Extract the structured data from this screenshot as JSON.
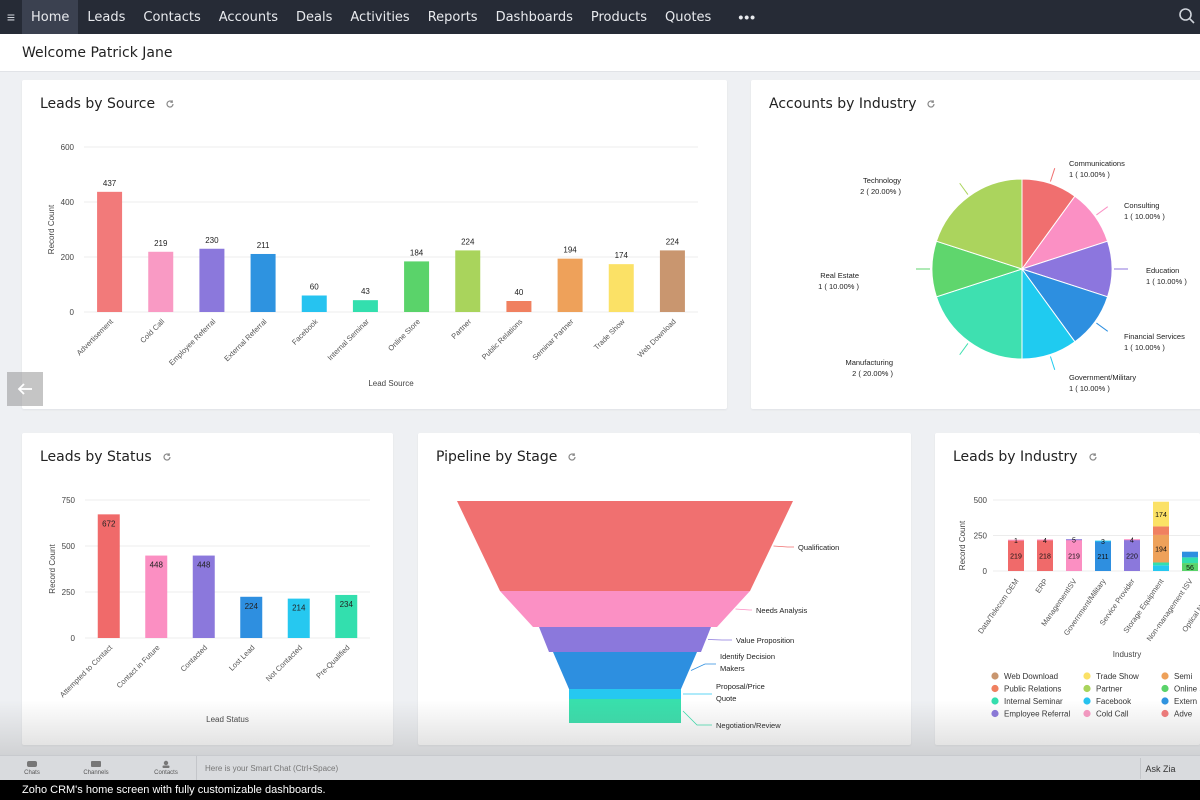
{
  "nav": {
    "items": [
      "Home",
      "Leads",
      "Contacts",
      "Accounts",
      "Deals",
      "Activities",
      "Reports",
      "Dashboards",
      "Products",
      "Quotes"
    ],
    "active": "Home",
    "more": "•••"
  },
  "welcome": "Welcome Patrick Jane",
  "cards": {
    "leads_by_source": {
      "title": "Leads by Source"
    },
    "accounts_by_industry": {
      "title": "Accounts by Industry"
    },
    "leads_by_status": {
      "title": "Leads by Status"
    },
    "pipeline_by_stage": {
      "title": "Pipeline by Stage"
    },
    "leads_by_industry": {
      "title": "Leads by Industry"
    }
  },
  "chart_data": [
    {
      "id": "leads_by_source",
      "type": "bar",
      "title": "Leads by Source",
      "xlabel": "Lead Source",
      "ylabel": "Record Count",
      "ylim": [
        0,
        600
      ],
      "yticks": [
        0,
        200,
        400,
        600
      ],
      "categories": [
        "Advertisement",
        "Cold Call",
        "Employee Referral",
        "External Referral",
        "Facebook",
        "Internal Seminar",
        "Online Store",
        "Partner",
        "Public Relations",
        "Seminar Partner",
        "Trade Show",
        "Web Download"
      ],
      "values": [
        437,
        219,
        230,
        211,
        60,
        43,
        184,
        224,
        40,
        194,
        174,
        224
      ],
      "colors": [
        "#f27a7a",
        "#f99ac4",
        "#8b78dc",
        "#2e93e0",
        "#26c3f0",
        "#33dfae",
        "#5ad36a",
        "#a9d45c",
        "#f08060",
        "#eea15a",
        "#fbe166",
        "#c9966f"
      ]
    },
    {
      "id": "accounts_by_industry",
      "type": "pie",
      "title": "Accounts by Industry",
      "slices": [
        {
          "label": "Communications",
          "value": 1,
          "text": "1 ( 10.00% )",
          "color": "#f06f6f"
        },
        {
          "label": "Consulting",
          "value": 1,
          "text": "1 ( 10.00% )",
          "color": "#fb90c4"
        },
        {
          "label": "Education",
          "value": 1,
          "text": "1 ( 10.00% )",
          "color": "#8c76de"
        },
        {
          "label": "Financial Services",
          "value": 1,
          "text": "1 ( 10.00% )",
          "color": "#2d8fe0"
        },
        {
          "label": "Government/Military",
          "value": 1,
          "text": "1 ( 10.00% )",
          "color": "#1fcbf0"
        },
        {
          "label": "Manufacturing",
          "value": 2,
          "text": "2 ( 20.00% )",
          "color": "#3ee0b0"
        },
        {
          "label": "Real Estate",
          "value": 1,
          "text": "1 ( 10.00% )",
          "color": "#5fd66d"
        },
        {
          "label": "Technology",
          "value": 2,
          "text": "2 ( 20.00% )",
          "color": "#abd45d"
        }
      ]
    },
    {
      "id": "leads_by_status",
      "type": "bar",
      "title": "Leads by Status",
      "xlabel": "Lead Status",
      "ylabel": "Record Count",
      "ylim": [
        0,
        750
      ],
      "yticks": [
        0,
        250,
        500,
        750
      ],
      "categories": [
        "Attempted to Contact",
        "Contact in Future",
        "Contacted",
        "Lost Lead",
        "Not Contacted",
        "Pre-Qualified"
      ],
      "values": [
        672,
        448,
        448,
        224,
        214,
        234
      ],
      "colors": [
        "#f06a6a",
        "#fb8fc2",
        "#8b78dc",
        "#2e8fe0",
        "#26c8f0",
        "#33dfae"
      ]
    },
    {
      "id": "pipeline_by_stage",
      "type": "funnel",
      "title": "Pipeline by Stage",
      "stages": [
        {
          "label": "Qualification",
          "color": "#f07070"
        },
        {
          "label": "Needs Analysis",
          "color": "#fb90c4"
        },
        {
          "label": "Value Proposition",
          "color": "#8b78dc"
        },
        {
          "label": "Identify Decision Makers",
          "color": "#2d8fe0"
        },
        {
          "label": "Proposal/Price Quote",
          "color": "#26c8f0"
        },
        {
          "label": "Negotiation/Review",
          "color": "#38e0ac"
        }
      ]
    },
    {
      "id": "leads_by_industry",
      "type": "bar",
      "stacked": true,
      "title": "Leads by Industry",
      "xlabel": "Industry",
      "ylabel": "Record Count",
      "ylim": [
        0,
        500
      ],
      "yticks": [
        0,
        250,
        500
      ],
      "categories": [
        "Data/Telecom OEM",
        "ERP",
        "ManagementISV",
        "Government/Military",
        "Service Provider",
        "Storage Equipment",
        "Non-management ISV",
        "Optical Networking"
      ],
      "bars": [
        {
          "segments": [
            {
              "value": 219,
              "color": "#f06a6a",
              "label": "219"
            },
            {
              "value": 1,
              "color": "#fb8fc2",
              "label": "1"
            }
          ]
        },
        {
          "segments": [
            {
              "value": 218,
              "color": "#f06a6a",
              "label": "218"
            },
            {
              "value": 4,
              "color": "#fb8fc2",
              "label": "4"
            }
          ]
        },
        {
          "segments": [
            {
              "value": 219,
              "color": "#fb8fc2",
              "label": "219"
            },
            {
              "value": 5,
              "color": "#8b78dc",
              "label": "5"
            }
          ]
        },
        {
          "segments": [
            {
              "value": 211,
              "color": "#2e8fe0",
              "label": "211"
            },
            {
              "value": 3,
              "color": "#26c8f0",
              "label": "3"
            }
          ]
        },
        {
          "segments": [
            {
              "value": 220,
              "color": "#8b78dc",
              "label": "220"
            },
            {
              "value": 4,
              "color": "#fb8fc2",
              "label": "4"
            }
          ]
        },
        {
          "segments": [
            {
              "value": 40,
              "color": "#26c8f0",
              "label": ""
            },
            {
              "value": 20,
              "color": "#33dfae",
              "label": ""
            },
            {
              "value": 194,
              "color": "#eea15a",
              "label": "194"
            },
            {
              "value": 60,
              "color": "#f08060",
              "label": ""
            },
            {
              "value": 174,
              "color": "#fbe166",
              "label": "174"
            }
          ]
        },
        {
          "segments": [
            {
              "value": 56,
              "color": "#5ad36a",
              "label": "56"
            },
            {
              "value": 40,
              "color": "#33dfae",
              "label": ""
            },
            {
              "value": 40,
              "color": "#2e8fe0",
              "label": ""
            }
          ]
        },
        {
          "segments": [
            {
              "value": 30,
              "color": "#5ad36a",
              "label": ""
            }
          ]
        }
      ],
      "legend": [
        {
          "label": "Web Download",
          "color": "#c9966f"
        },
        {
          "label": "Trade Show",
          "color": "#fbe166"
        },
        {
          "label": "Semi",
          "color": "#eea15a"
        },
        {
          "label": "Public Relations",
          "color": "#f08060"
        },
        {
          "label": "Partner",
          "color": "#a9d45c"
        },
        {
          "label": "Online Sto",
          "color": "#5ad36a"
        },
        {
          "label": "Internal Seminar",
          "color": "#33dfae"
        },
        {
          "label": "Facebook",
          "color": "#26c3f0"
        },
        {
          "label": "Extern",
          "color": "#2e93e0"
        },
        {
          "label": "Employee Referral",
          "color": "#8b78dc"
        },
        {
          "label": "Cold Call",
          "color": "#f99ac4"
        },
        {
          "label": "Adve",
          "color": "#f27a7a"
        }
      ]
    }
  ],
  "footer": {
    "icon_labels": [
      "Chats",
      "Channels",
      "Contacts"
    ],
    "smart_chat_placeholder": "Here is your Smart Chat (Ctrl+Space)",
    "ask_zia": "Ask Zia"
  },
  "caption": "Zoho CRM's home screen with fully customizable dashboards."
}
